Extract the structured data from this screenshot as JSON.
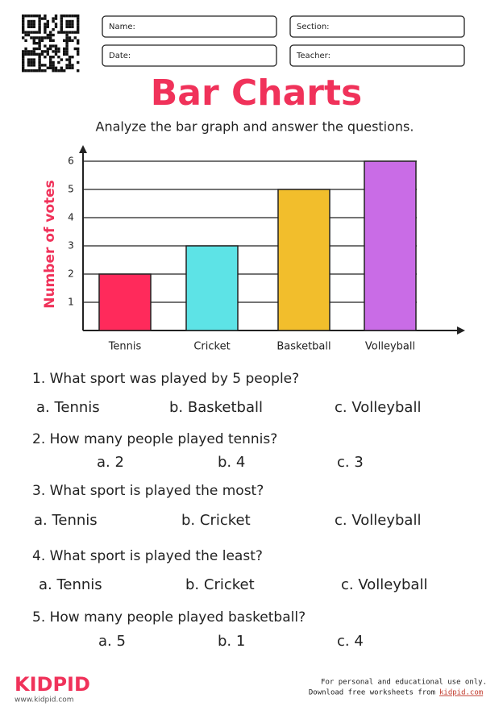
{
  "header": {
    "fields": [
      "Name:",
      "Section:",
      "Date:",
      "Teacher:"
    ]
  },
  "title": "Bar Charts",
  "instructions": "Analyze the bar graph and answer the questions.",
  "chart_data": {
    "type": "bar",
    "y_label": "Number of votes",
    "categories": [
      "Tennis",
      "Cricket",
      "Basketball",
      "Volleyball"
    ],
    "values": [
      2,
      3,
      5,
      6
    ],
    "colors": [
      "#ff2a5b",
      "#5de3e6",
      "#f2be2c",
      "#c96ce6"
    ],
    "ylim": [
      0,
      6
    ],
    "yticks": [
      1,
      2,
      3,
      4,
      5,
      6
    ],
    "grid": true
  },
  "questions": [
    {
      "text": "1.  What sport was played by 5 people?",
      "options": [
        "a. Tennis",
        "b. Basketball",
        "c. Volleyball"
      ]
    },
    {
      "text": "2. How many people played tennis?",
      "options": [
        "a. 2",
        "b. 4",
        "c. 3"
      ]
    },
    {
      "text": "3. What sport is played the most?",
      "options": [
        "a. Tennis",
        "b. Cricket",
        "c. Volleyball"
      ]
    },
    {
      "text": "4.  What sport is played the least?",
      "options": [
        "a. Tennis",
        "b. Cricket",
        "c. Volleyball"
      ]
    },
    {
      "text": "5. How many people played basketball?",
      "options": [
        "a. 5",
        "b. 1",
        "c. 4"
      ]
    }
  ],
  "footer": {
    "logo": "KIDPID",
    "site": "www.kidpid.com",
    "note": "For personal and educational use only.",
    "download": "Download free worksheets from",
    "link": "kidpid.com"
  }
}
